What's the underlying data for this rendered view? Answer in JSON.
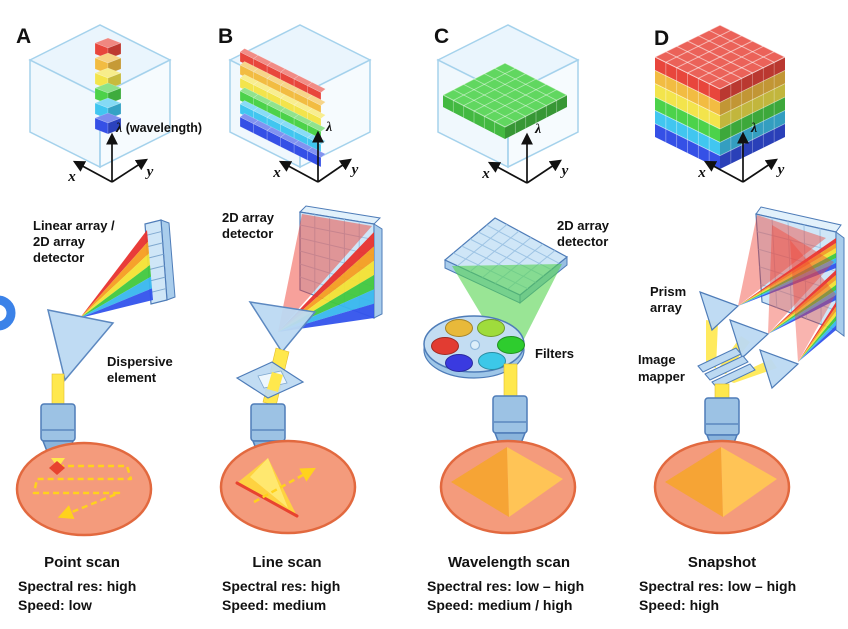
{
  "figure": {
    "panels": [
      {
        "letter": "A",
        "axis": {
          "lambda": "λ",
          "wavelength_note": " (wavelength)",
          "x": "x",
          "y": "y"
        },
        "labels": {
          "detector_line1": "Linear array /",
          "detector_line2": "2D array",
          "detector_line3": "detector",
          "dispersive_line1": "Dispersive",
          "dispersive_line2": "element"
        },
        "caption": {
          "title": "Point scan",
          "spectral_res": "Spectral res: high",
          "speed": "Speed: low"
        }
      },
      {
        "letter": "B",
        "axis": {
          "lambda": "λ",
          "x": "x",
          "y": "y"
        },
        "labels": {
          "detector_line1": "2D array",
          "detector_line2": "detector"
        },
        "caption": {
          "title": "Line scan",
          "spectral_res": "Spectral res: high",
          "speed": "Speed: medium"
        }
      },
      {
        "letter": "C",
        "axis": {
          "lambda": "λ",
          "x": "x",
          "y": "y"
        },
        "labels": {
          "detector_line1": "2D array",
          "detector_line2": "detector",
          "filters": "Filters"
        },
        "caption": {
          "title": "Wavelength scan",
          "spectral_res": "Spectral res: low – high",
          "speed": "Speed: medium / high"
        }
      },
      {
        "letter": "D",
        "axis": {
          "lambda": "λ",
          "x": "x",
          "y": "y"
        },
        "labels": {
          "prism_line1": "Prism",
          "prism_line2": "array",
          "mapper_line1": "Image",
          "mapper_line2": "mapper"
        },
        "caption": {
          "title": "Snapshot",
          "spectral_res": "Spectral res: low – high",
          "speed": "Speed: high"
        }
      }
    ],
    "colors": {
      "spectral_layers": [
        "#e8463c",
        "#f2bc42",
        "#f3e44c",
        "#4cd24a",
        "#41c6f0",
        "#3550e6"
      ],
      "rainbow_bands": [
        "#e8312e",
        "#f59d20",
        "#f3e233",
        "#41c83e",
        "#38b7ee",
        "#3353ec"
      ],
      "glass_cube": "#d9edfb",
      "sample_fill": "#f49b7c",
      "sample_stroke": "#e2693f",
      "beam_yellow": "#ffe84d",
      "optic_blue": "#bcd9f2",
      "detector_blue": "#cfe6f7",
      "pyramid_left": "#f5a52f",
      "pyramid_right": "#ffc852",
      "red_fan": "#f04438",
      "scan_dash_yellow": "#ffd21c",
      "filter_colors": [
        "#e8b93a",
        "#9fdc3c",
        "#e23c32",
        "#2ecc2e",
        "#3a3ae0",
        "#3cc8e8"
      ]
    }
  }
}
